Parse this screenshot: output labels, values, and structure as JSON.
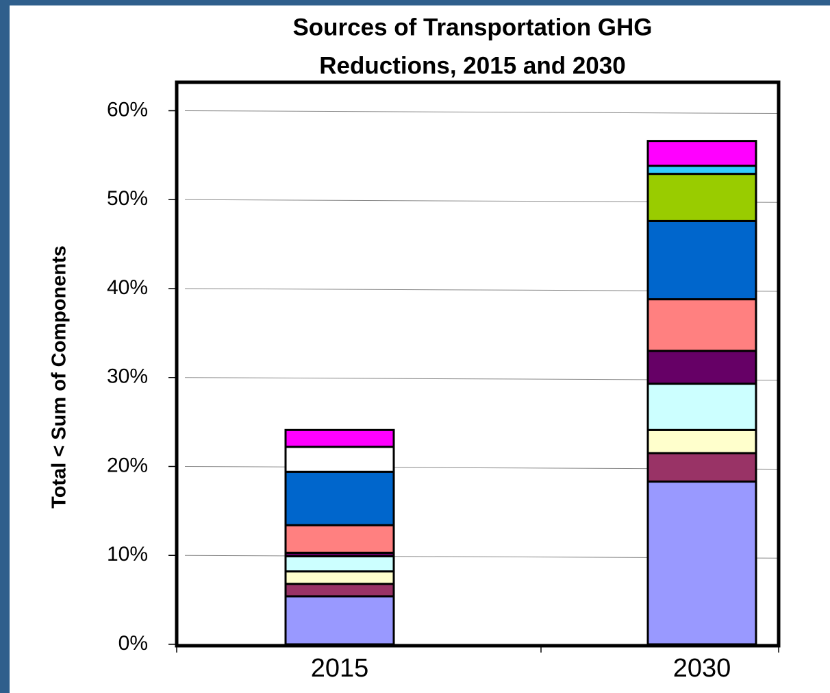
{
  "chart_data": {
    "type": "stacked_bar",
    "title": [
      "Sources of Transportation GHG",
      "Reductions, 2015 and 2030"
    ],
    "y_label": "Total < Sum of Components",
    "categories": [
      "2015",
      "2030"
    ],
    "series": [
      {
        "color": "#9999ff",
        "values": [
          5.4,
          18.3
        ]
      },
      {
        "color": "#993366",
        "values": [
          1.4,
          3.2
        ]
      },
      {
        "color": "#ffffcc",
        "values": [
          1.4,
          2.6
        ]
      },
      {
        "color": "#ccffff",
        "values": [
          1.7,
          5.2
        ]
      },
      {
        "color": "#660066",
        "values": [
          0.4,
          3.7
        ]
      },
      {
        "color": "#ff8080",
        "values": [
          3.1,
          5.8
        ]
      },
      {
        "color": "#0066cc",
        "values": [
          6.0,
          8.8
        ]
      },
      {
        "color": "#ffffff",
        "values": [
          2.8,
          0
        ]
      },
      {
        "color": "#99cc00",
        "values": [
          0,
          5.3
        ]
      },
      {
        "color": "#33ccff",
        "values": [
          0,
          0.9
        ]
      },
      {
        "color": "#ff00ff",
        "values": [
          1.9,
          2.8
        ]
      }
    ],
    "ylim": [
      0,
      63.2
    ],
    "yticks": [
      {
        "value": 0,
        "label": "0%"
      },
      {
        "value": 10,
        "label": "10%"
      },
      {
        "value": 20,
        "label": "20%"
      },
      {
        "value": 30,
        "label": "30%"
      },
      {
        "value": 40,
        "label": "40%"
      },
      {
        "value": 50,
        "label": "50%"
      },
      {
        "value": 60,
        "label": "60%"
      }
    ],
    "grid": true
  }
}
